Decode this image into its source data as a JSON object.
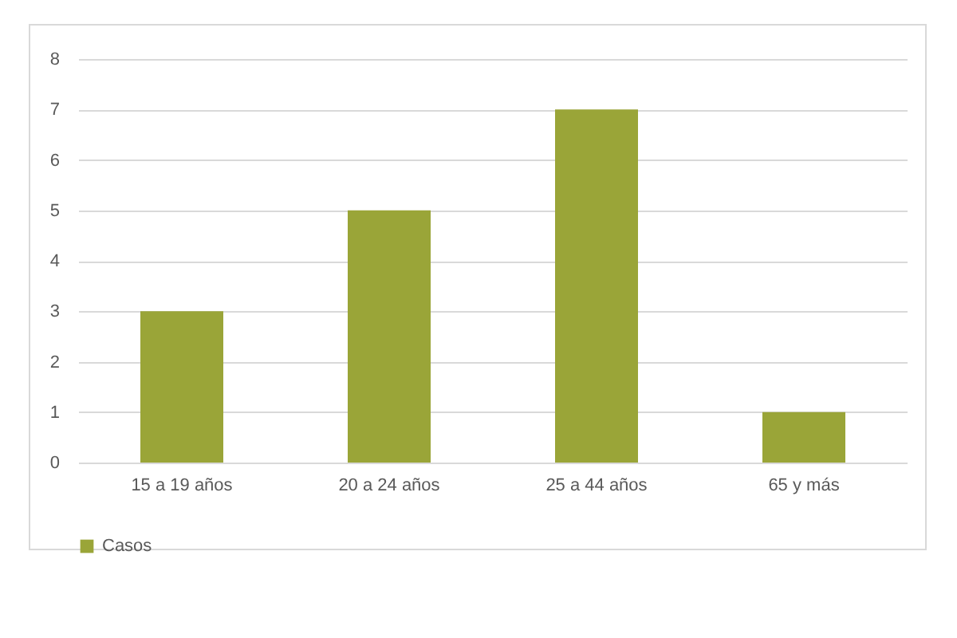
{
  "chart_data": {
    "type": "bar",
    "categories": [
      "15 a 19 años",
      "20 a 24 años",
      "25 a 44 años",
      "65 y más"
    ],
    "series": [
      {
        "name": "Casos",
        "color": "#9aa538",
        "values": [
          3,
          5,
          7,
          1
        ]
      }
    ],
    "ylim": [
      0,
      8
    ],
    "yticks": [
      0,
      1,
      2,
      3,
      4,
      5,
      6,
      7,
      8
    ],
    "grid": "y",
    "legend": "bottom"
  }
}
